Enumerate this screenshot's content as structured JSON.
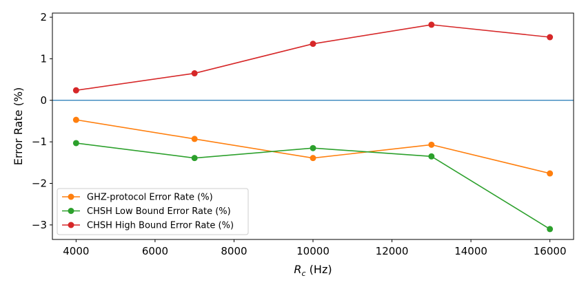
{
  "chart_data": {
    "type": "line",
    "xlabel": "R_c (Hz)",
    "xlabel_main": "R",
    "xlabel_sub": "c",
    "xlabel_rest": " (Hz)",
    "ylabel": "Error Rate (%)",
    "x": [
      4000,
      7000,
      10000,
      13000,
      16000
    ],
    "xlim": [
      3400,
      16600
    ],
    "ylim": [
      -3.35,
      2.1
    ],
    "xticks": [
      4000,
      6000,
      8000,
      10000,
      12000,
      14000,
      16000
    ],
    "yticks": [
      -3,
      -2,
      -1,
      0,
      1,
      2
    ],
    "ytick_labels": [
      "−3",
      "−2",
      "−1",
      "0",
      "1",
      "2"
    ],
    "reference_line": {
      "y": 0,
      "color": "#1f77b4"
    },
    "legend_position": "lower-left",
    "series": [
      {
        "name": "GHZ-protocol Error Rate (%)",
        "color": "#ff7f0e",
        "values": [
          -0.47,
          -0.93,
          -1.39,
          -1.07,
          -1.76
        ]
      },
      {
        "name": "CHSH Low Bound Error Rate (%)",
        "color": "#2ca02c",
        "values": [
          -1.03,
          -1.39,
          -1.15,
          -1.35,
          -3.1
        ]
      },
      {
        "name": "CHSH High Bound Error Rate (%)",
        "color": "#d62728",
        "values": [
          0.24,
          0.65,
          1.36,
          1.82,
          1.52
        ]
      }
    ]
  }
}
